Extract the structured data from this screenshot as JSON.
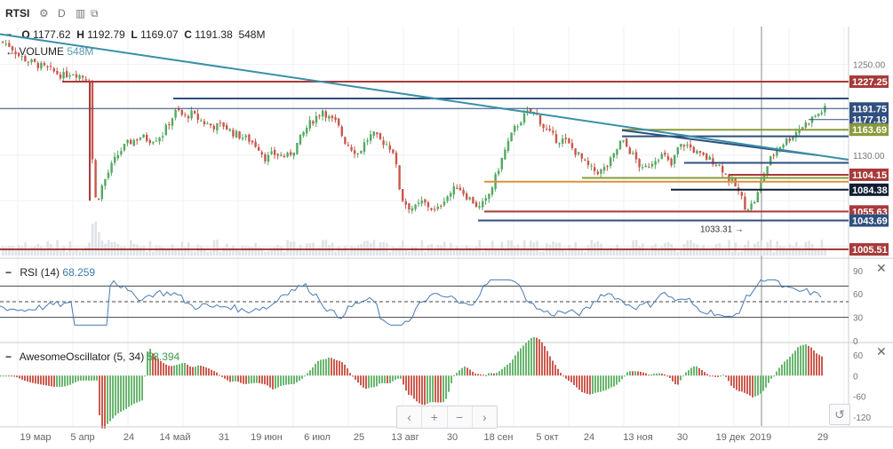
{
  "header": {
    "symbol": "RTSI",
    "interval": "D",
    "gear_icon": "gear-icon",
    "compare_icon": "compare-icon",
    "fullscreen_icon": "fullscreen-icon"
  },
  "legend": {
    "o_label": "O",
    "o": "1177.62",
    "h_label": "H",
    "h": "1192.79",
    "l_label": "L",
    "l": "1169.07",
    "c_label": "C",
    "c": "1191.38",
    "v": "548M",
    "volume_label": "VOLUME",
    "volume_value": "548M"
  },
  "rsi": {
    "label": "RSI (14)",
    "value": "68.259"
  },
  "ao": {
    "label": "AwesomeOscillator (5, 34)",
    "value": "58.394"
  },
  "nav": {
    "prev": "‹",
    "zoom_in": "+",
    "zoom_out": "−",
    "next": "›",
    "reset": "↺"
  },
  "chart_data": [
    {
      "type": "candlestick",
      "y_axis_ticks": [
        "1250.00",
        "1130.00"
      ],
      "price_labels": [
        {
          "text": "1227.25",
          "value": 1227.25,
          "color": "#a83a3a"
        },
        {
          "text": "1191.75",
          "value": 1191.75,
          "color": "#2f4f7f"
        },
        {
          "text": "1177.19",
          "value": 1177.19,
          "color": "#2f4f7f"
        },
        {
          "text": "1163.69",
          "value": 1163.69,
          "color": "#8a9a3a"
        },
        {
          "text": "1104.15",
          "value": 1104.15,
          "color": "#a83a3a"
        },
        {
          "text": "1084.38",
          "value": 1084.38,
          "color": "#111d33"
        },
        {
          "text": "1055.63",
          "value": 1055.63,
          "color": "#a83a3a"
        },
        {
          "text": "1043.69",
          "value": 1043.69,
          "color": "#2f4f7f"
        },
        {
          "text": "1005.51",
          "value": 1005.51,
          "color": "#a83a3a"
        }
      ],
      "annotation": {
        "text": "1033.31",
        "value": 1033.31
      },
      "close_path": [
        [
          0,
          1280
        ],
        [
          10,
          1275
        ],
        [
          20,
          1262
        ],
        [
          30,
          1255
        ],
        [
          40,
          1250
        ],
        [
          50,
          1245
        ],
        [
          60,
          1240
        ],
        [
          70,
          1235
        ],
        [
          80,
          1240
        ],
        [
          90,
          1235
        ],
        [
          100,
          1230
        ],
        [
          104,
          1080
        ],
        [
          108,
          1068
        ],
        [
          112,
          1085
        ],
        [
          118,
          1100
        ],
        [
          124,
          1115
        ],
        [
          130,
          1128
        ],
        [
          136,
          1138
        ],
        [
          142,
          1145
        ],
        [
          150,
          1150
        ],
        [
          158,
          1155
        ],
        [
          166,
          1150
        ],
        [
          174,
          1152
        ],
        [
          182,
          1158
        ],
        [
          190,
          1175
        ],
        [
          198,
          1190
        ],
        [
          206,
          1180
        ],
        [
          214,
          1185
        ],
        [
          222,
          1178
        ],
        [
          230,
          1172
        ],
        [
          240,
          1168
        ],
        [
          250,
          1170
        ],
        [
          260,
          1160
        ],
        [
          270,
          1155
        ],
        [
          280,
          1150
        ],
        [
          290,
          1140
        ],
        [
          298,
          1125
        ],
        [
          306,
          1132
        ],
        [
          314,
          1130
        ],
        [
          322,
          1128
        ],
        [
          330,
          1138
        ],
        [
          338,
          1155
        ],
        [
          346,
          1170
        ],
        [
          354,
          1180
        ],
        [
          362,
          1190
        ],
        [
          370,
          1178
        ],
        [
          378,
          1172
        ],
        [
          386,
          1150
        ],
        [
          394,
          1140
        ],
        [
          402,
          1132
        ],
        [
          410,
          1148
        ],
        [
          418,
          1158
        ],
        [
          426,
          1150
        ],
        [
          434,
          1145
        ],
        [
          442,
          1135
        ],
        [
          450,
          1075
        ],
        [
          458,
          1062
        ],
        [
          466,
          1060
        ],
        [
          474,
          1068
        ],
        [
          482,
          1062
        ],
        [
          490,
          1055
        ],
        [
          498,
          1072
        ],
        [
          506,
          1080
        ],
        [
          514,
          1090
        ],
        [
          522,
          1078
        ],
        [
          530,
          1070
        ],
        [
          538,
          1060
        ],
        [
          546,
          1070
        ],
        [
          554,
          1092
        ],
        [
          562,
          1120
        ],
        [
          570,
          1145
        ],
        [
          578,
          1165
        ],
        [
          586,
          1178
        ],
        [
          594,
          1188
        ],
        [
          602,
          1185
        ],
        [
          610,
          1168
        ],
        [
          618,
          1158
        ],
        [
          626,
          1150
        ],
        [
          634,
          1150
        ],
        [
          642,
          1140
        ],
        [
          650,
          1130
        ],
        [
          658,
          1118
        ],
        [
          666,
          1110
        ],
        [
          674,
          1108
        ],
        [
          682,
          1115
        ],
        [
          690,
          1130
        ],
        [
          698,
          1150
        ],
        [
          706,
          1138
        ],
        [
          714,
          1125
        ],
        [
          722,
          1110
        ],
        [
          730,
          1118
        ],
        [
          738,
          1128
        ],
        [
          746,
          1130
        ],
        [
          754,
          1115
        ],
        [
          762,
          1140
        ],
        [
          770,
          1145
        ],
        [
          778,
          1138
        ],
        [
          786,
          1130
        ],
        [
          794,
          1126
        ],
        [
          802,
          1122
        ],
        [
          810,
          1115
        ],
        [
          818,
          1100
        ],
        [
          826,
          1090
        ],
        [
          834,
          1072
        ],
        [
          838,
          1060
        ],
        [
          846,
          1065
        ],
        [
          852,
          1080
        ],
        [
          858,
          1105
        ],
        [
          866,
          1125
        ],
        [
          874,
          1140
        ],
        [
          882,
          1148
        ],
        [
          890,
          1155
        ],
        [
          898,
          1165
        ],
        [
          906,
          1172
        ],
        [
          914,
          1180
        ],
        [
          922,
          1186
        ],
        [
          926,
          1191
        ]
      ]
    },
    {
      "type": "line",
      "name": "RSI (14)",
      "y_axis_ticks": [
        "90",
        "60",
        "30",
        "0"
      ],
      "ylim": [
        0,
        100
      ]
    },
    {
      "type": "bar",
      "name": "AwesomeOscillator (5, 34)",
      "y_axis_ticks": [
        "60",
        "0",
        "-60",
        "-120"
      ],
      "ylim": [
        -140,
        80
      ]
    }
  ],
  "x_axis": {
    "labels": [
      "19 мар",
      "5 апр",
      "24",
      "14 май",
      "31",
      "19 июн",
      "6 июл",
      "25",
      "13 авг",
      "30",
      "18 сен",
      "5 окт",
      "24",
      "13 ноя",
      "30",
      "19 дек",
      "2019",
      "29"
    ]
  }
}
